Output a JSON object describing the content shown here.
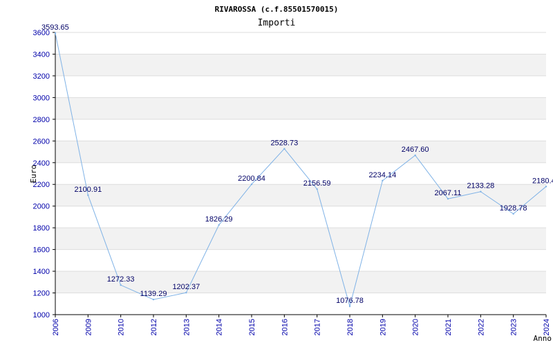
{
  "chart_data": {
    "type": "line",
    "title": "RIVAROSSA (c.f.85501570015)",
    "subtitle": "Importi",
    "xlabel": "Anno",
    "ylabel": "Euro",
    "categories": [
      "2006",
      "2009",
      "2010",
      "2012",
      "2013",
      "2014",
      "2015",
      "2016",
      "2017",
      "2018",
      "2019",
      "2020",
      "2021",
      "2022",
      "2023",
      "2024"
    ],
    "series": [
      {
        "values": [
          3593.65,
          2100.91,
          1272.33,
          1139.29,
          1202.37,
          1826.29,
          2200.84,
          2528.73,
          2156.59,
          1076.78,
          2234.14,
          2467.6,
          2067.11,
          2133.28,
          1928.78,
          2180.4
        ],
        "labels": [
          "3593.65",
          "2100.91",
          "1272.33",
          "1139.29",
          "1202.37",
          "1826.29",
          "2200.84",
          "2528.73",
          "2156.59",
          "1076.78",
          "2234.14",
          "2467.60",
          "2067.11",
          "2133.28",
          "1928.78",
          "2180.4"
        ]
      }
    ],
    "ylim": [
      1000,
      3600
    ],
    "yticks": [
      "1000",
      "1200",
      "1400",
      "1600",
      "1800",
      "2000",
      "2200",
      "2400",
      "2600",
      "2800",
      "3000",
      "3200",
      "3400",
      "3600"
    ],
    "grid": true,
    "colors": {
      "line": "#7fb2e6",
      "band": "#f2f2f2",
      "grid": "#dddddd",
      "tick_text": "#0000aa",
      "data_label": "#000066"
    }
  }
}
